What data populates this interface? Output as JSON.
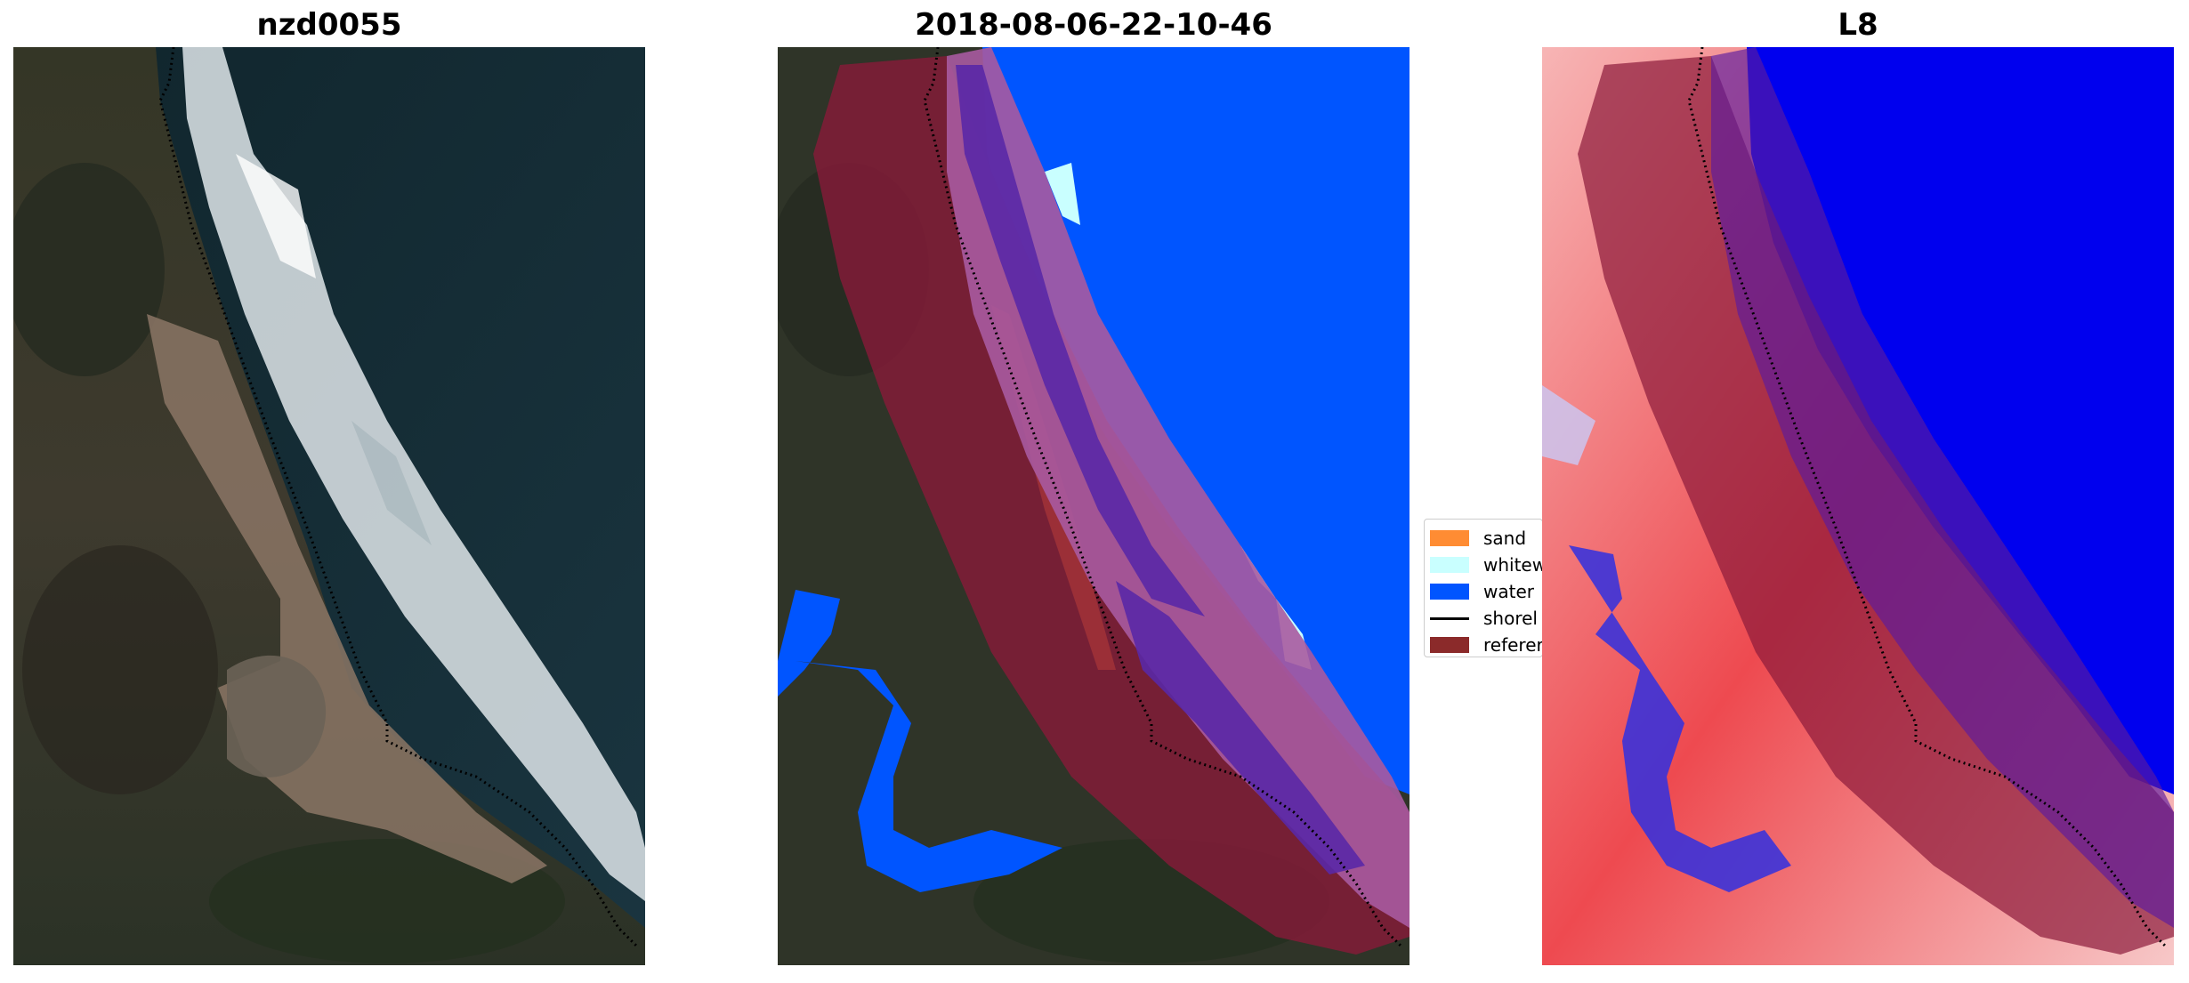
{
  "titles": {
    "left": "nzd0055",
    "middle": "2018-08-06-22-10-46",
    "right": "L8"
  },
  "legend": {
    "items": [
      {
        "label": "sand",
        "color": "#ff8c33"
      },
      {
        "label": "whitew",
        "color": "#c9ffff"
      },
      {
        "label": "water",
        "color": "#0055ff"
      },
      {
        "label": "shorel",
        "color": "#000000"
      },
      {
        "label": "referer",
        "color": "#8b2a2a"
      }
    ]
  },
  "colors": {
    "sea_dark": "#152a33",
    "land_dark": "#2c2f27",
    "sand_beach": "#8b7665",
    "surf_white": "#dfe6ea",
    "water_blue": "#0055ff",
    "reference_overlay": "#8b1a3a",
    "index_red": "#ee3344",
    "index_blue": "#0000ee"
  }
}
